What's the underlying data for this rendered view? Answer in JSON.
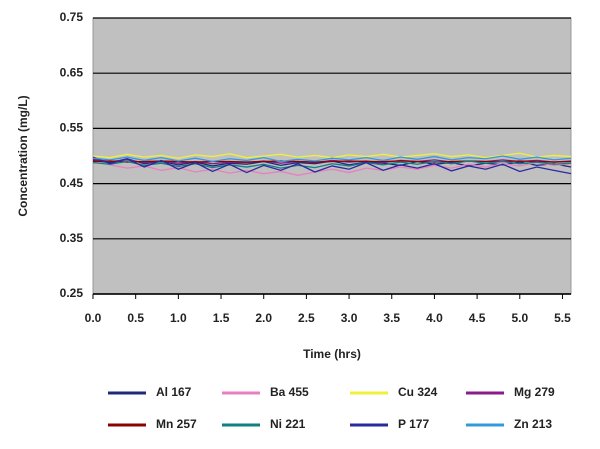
{
  "chart_data": {
    "type": "line",
    "y_label": "Concentration (mg/L)",
    "x_label": "Time (hrs)",
    "x": [
      0,
      0.2,
      0.4,
      0.6,
      0.8,
      1,
      1.2,
      1.4,
      1.6,
      1.8,
      2,
      2.2,
      2.4,
      2.6,
      2.8,
      3,
      3.2,
      3.4,
      3.6,
      3.8,
      4,
      4.2,
      4.4,
      4.6,
      4.8,
      5,
      5.2,
      5.4,
      5.6
    ],
    "xlim": [
      0,
      5.6
    ],
    "ylim": [
      0.25,
      0.75
    ],
    "xticks": [
      {
        "value": 0,
        "label": "0.0"
      },
      0.5,
      {
        "value": 1,
        "label": "1.0"
      },
      1.5,
      {
        "value": 2,
        "label": "2.0"
      },
      2.5,
      {
        "value": 3,
        "label": "3.0"
      },
      3.5,
      {
        "value": 4,
        "label": "4.0"
      },
      4.5,
      {
        "value": 5,
        "label": "5.0"
      },
      5.5
    ],
    "yticks": [
      0.25,
      0.35,
      0.45,
      0.55,
      0.65,
      0.75
    ],
    "grid": true,
    "background": "#c0c0c0",
    "legend": "bottom",
    "series": [
      {
        "name": "Al 167",
        "color": "#1f2a7a",
        "values": [
          0.492,
          0.488,
          0.495,
          0.486,
          0.49,
          0.484,
          0.489,
          0.482,
          0.487,
          0.485,
          0.49,
          0.483,
          0.488,
          0.486,
          0.491,
          0.484,
          0.489,
          0.487,
          0.483,
          0.49,
          0.485,
          0.488,
          0.482,
          0.487,
          0.484,
          0.489,
          0.483,
          0.486,
          0.48
        ]
      },
      {
        "name": "Ba 455",
        "color": "#e87fc0",
        "values": [
          0.49,
          0.484,
          0.478,
          0.482,
          0.474,
          0.479,
          0.471,
          0.476,
          0.469,
          0.474,
          0.468,
          0.472,
          0.465,
          0.471,
          0.476,
          0.47,
          0.478,
          0.474,
          0.48,
          0.476,
          0.483,
          0.478,
          0.485,
          0.48,
          0.486,
          0.482,
          0.488,
          0.483,
          0.486
        ]
      },
      {
        "name": "Cu 324",
        "color": "#f0f03c",
        "values": [
          0.5,
          0.497,
          0.503,
          0.498,
          0.501,
          0.496,
          0.502,
          0.499,
          0.504,
          0.497,
          0.5,
          0.503,
          0.498,
          0.501,
          0.497,
          0.502,
          0.499,
          0.503,
          0.498,
          0.501,
          0.504,
          0.499,
          0.502,
          0.497,
          0.501,
          0.505,
          0.498,
          0.501,
          0.499
        ]
      },
      {
        "name": "Mg 279",
        "color": "#8b1a8b",
        "values": [
          0.494,
          0.49,
          0.493,
          0.488,
          0.491,
          0.487,
          0.49,
          0.486,
          0.489,
          0.488,
          0.491,
          0.487,
          0.49,
          0.488,
          0.492,
          0.489,
          0.491,
          0.488,
          0.492,
          0.49,
          0.493,
          0.489,
          0.491,
          0.49,
          0.493,
          0.49,
          0.492,
          0.489,
          0.491
        ]
      },
      {
        "name": "Mn 257",
        "color": "#8b0000",
        "values": [
          0.49,
          0.491,
          0.489,
          0.49,
          0.491,
          0.49,
          0.489,
          0.49,
          0.49,
          0.489,
          0.49,
          0.491,
          0.49,
          0.489,
          0.49,
          0.491,
          0.49,
          0.49,
          0.491,
          0.49,
          0.489,
          0.49,
          0.491,
          0.49,
          0.49,
          0.491,
          0.49,
          0.489,
          0.49
        ]
      },
      {
        "name": "Ni 221",
        "color": "#108080",
        "values": [
          0.488,
          0.485,
          0.49,
          0.483,
          0.487,
          0.481,
          0.486,
          0.479,
          0.484,
          0.48,
          0.485,
          0.478,
          0.483,
          0.479,
          0.486,
          0.482,
          0.488,
          0.484,
          0.489,
          0.485,
          0.49,
          0.486,
          0.491,
          0.487,
          0.49,
          0.486,
          0.489,
          0.485,
          0.487
        ]
      },
      {
        "name": "P 177",
        "color": "#2a2aa0",
        "values": [
          0.498,
          0.486,
          0.495,
          0.48,
          0.492,
          0.476,
          0.488,
          0.472,
          0.485,
          0.47,
          0.483,
          0.474,
          0.486,
          0.471,
          0.482,
          0.476,
          0.488,
          0.474,
          0.484,
          0.478,
          0.486,
          0.473,
          0.482,
          0.476,
          0.485,
          0.472,
          0.48,
          0.474,
          0.468
        ]
      },
      {
        "name": "Zn 213",
        "color": "#3399dd",
        "values": [
          0.496,
          0.493,
          0.498,
          0.492,
          0.497,
          0.491,
          0.496,
          0.49,
          0.495,
          0.492,
          0.497,
          0.49,
          0.494,
          0.491,
          0.496,
          0.493,
          0.497,
          0.492,
          0.498,
          0.494,
          0.499,
          0.493,
          0.497,
          0.495,
          0.5,
          0.494,
          0.498,
          0.493,
          0.496
        ]
      }
    ]
  }
}
